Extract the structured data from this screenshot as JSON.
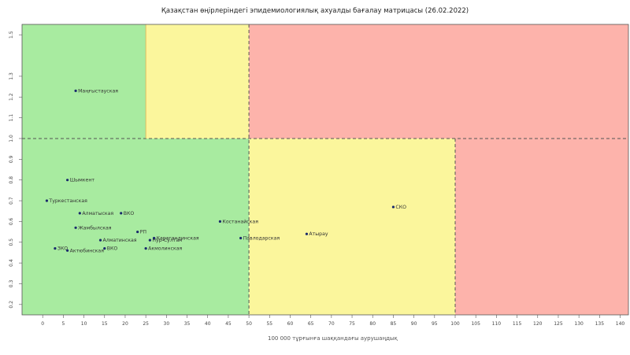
{
  "chart_data": {
    "type": "scatter",
    "title": "Қазақстан өңірлеріндегі эпидемиологиялық ахуалды бағалау матрицасы  (26.02.2022)",
    "xlabel": "100 000 тұрғынға шаққандағы аурушаңдық",
    "ylabel": "",
    "xlim": [
      -5,
      142
    ],
    "ylim": [
      0.15,
      1.55
    ],
    "x_ticks": [
      0,
      5,
      10,
      15,
      20,
      25,
      30,
      35,
      40,
      45,
      50,
      55,
      60,
      65,
      70,
      75,
      80,
      85,
      90,
      95,
      100,
      105,
      110,
      115,
      120,
      125,
      130,
      135,
      140
    ],
    "x_tick_labels": [
      "0",
      "5",
      "10",
      "15",
      "20",
      "25",
      "30",
      "35",
      "40",
      "45",
      "50",
      "55",
      "60",
      "65",
      "70",
      "75",
      "80",
      "85",
      "90",
      "95",
      "100",
      "105",
      "110",
      "115",
      "120",
      "125",
      "130",
      "135",
      "140"
    ],
    "y_ticks": [
      0.2,
      0.3,
      0.4,
      0.5,
      0.6,
      0.7,
      0.8,
      0.9,
      1.0,
      1.1,
      1.2,
      1.3,
      1.5
    ],
    "y_tick_labels": [
      "0.2",
      "0.3",
      "0.4",
      "0.5",
      "0.6",
      "0.7",
      "0.8",
      "0.9",
      "1.0",
      "1.1",
      "1.2",
      "1.3",
      "1.5"
    ],
    "zones": [
      {
        "x": [
          -5,
          25
        ],
        "y": [
          1.0,
          1.55
        ],
        "color": "#a8eba0"
      },
      {
        "x": [
          25,
          50
        ],
        "y": [
          1.0,
          1.55
        ],
        "color": "#fbf69c"
      },
      {
        "x": [
          50,
          142
        ],
        "y": [
          1.0,
          1.55
        ],
        "color": "#fdb3ab"
      },
      {
        "x": [
          -5,
          50
        ],
        "y": [
          0.15,
          1.0
        ],
        "color": "#a8eba0"
      },
      {
        "x": [
          50,
          100
        ],
        "y": [
          0.15,
          1.0
        ],
        "color": "#fbf69c"
      },
      {
        "x": [
          100,
          142
        ],
        "y": [
          0.15,
          1.0
        ],
        "color": "#fdb3ab"
      }
    ],
    "dashed_lines": {
      "vertical": [
        50,
        100
      ],
      "horizontal": [
        1.0
      ]
    },
    "points": [
      {
        "label": "Маңғыстауская",
        "x": 8,
        "y": 1.23
      },
      {
        "label": "Шымкент",
        "x": 6,
        "y": 0.8
      },
      {
        "label": "Туркестанская",
        "x": 1,
        "y": 0.7
      },
      {
        "label": "Алматыская",
        "x": 9,
        "y": 0.64
      },
      {
        "label": "ВКО",
        "x": 19,
        "y": 0.64
      },
      {
        "label": "Жамбылская",
        "x": 8,
        "y": 0.57
      },
      {
        "label": "Алматинская",
        "x": 14,
        "y": 0.51
      },
      {
        "label": "ЗКО",
        "x": 3,
        "y": 0.47
      },
      {
        "label": "Актюбинская",
        "x": 6,
        "y": 0.46
      },
      {
        "label": "ВКО",
        "x": 15,
        "y": 0.47
      },
      {
        "label": "Акмолинская",
        "x": 25,
        "y": 0.47
      },
      {
        "label": "Нур-Султан",
        "x": 26,
        "y": 0.51
      },
      {
        "label": "Карагандинская",
        "x": 27,
        "y": 0.52
      },
      {
        "label": "Павлодарская",
        "x": 48,
        "y": 0.52
      },
      {
        "label": "Костанайская",
        "x": 43,
        "y": 0.6
      },
      {
        "label": "РП",
        "x": 23,
        "y": 0.55
      },
      {
        "label": "Атырау",
        "x": 64,
        "y": 0.54
      },
      {
        "label": "СКО",
        "x": 85,
        "y": 0.67
      }
    ]
  }
}
